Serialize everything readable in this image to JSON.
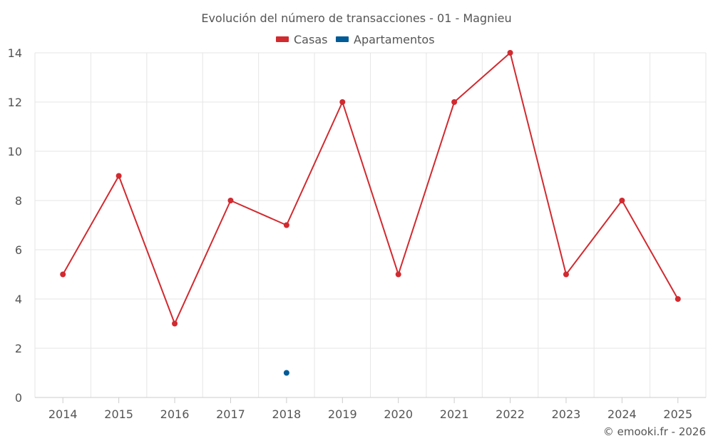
{
  "chart_data": {
    "type": "line",
    "title": "Evolución del número de transacciones - 01 - Magnieu",
    "categories": [
      "2014",
      "2015",
      "2016",
      "2017",
      "2018",
      "2019",
      "2020",
      "2021",
      "2022",
      "2023",
      "2024",
      "2025"
    ],
    "series": [
      {
        "name": "Casas",
        "color": "#d12a2f",
        "values": [
          5,
          9,
          3,
          8,
          7,
          12,
          5,
          12,
          14,
          5,
          8,
          4
        ]
      },
      {
        "name": "Apartamentos",
        "color": "#005b96",
        "values": [
          null,
          null,
          null,
          null,
          1,
          null,
          null,
          null,
          null,
          null,
          null,
          null
        ]
      }
    ],
    "ylim": [
      0,
      14
    ],
    "yticks": [
      0,
      2,
      4,
      6,
      8,
      10,
      12,
      14
    ],
    "xlabel": "",
    "ylabel": "",
    "grid": true,
    "legend_position": "top-center"
  },
  "credit": "© emooki.fr - 2026"
}
